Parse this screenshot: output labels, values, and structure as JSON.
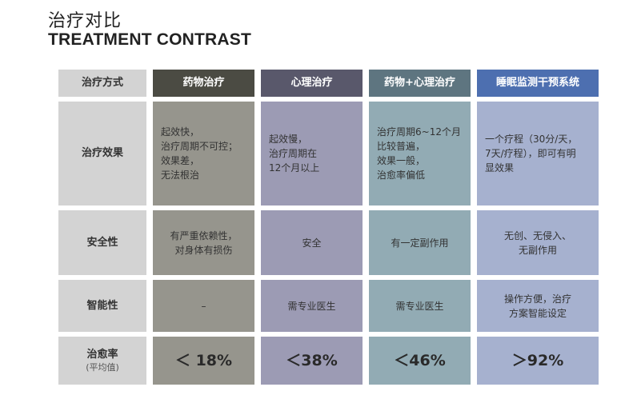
{
  "header": {
    "title_cn": "治疗对比",
    "title_en": "TREATMENT CONTRAST"
  },
  "table": {
    "corner_label": "治疗方式",
    "columns": [
      "药物治疗",
      "心理治疗",
      "药物+心理治疗",
      "睡眠监测干预系统"
    ],
    "rows": [
      {
        "label": "治疗效果",
        "cells": [
          "起效快，\n治疗周期不可控；\n效果差，\n无法根治",
          "起效慢，\n治疗周期在\n12个月以上",
          "治疗周期6~12个月\n比较普遍，\n效果一般，\n治愈率偏低",
          "一个疗程（30分/天，\n7天/疗程），即可有明\n显效果"
        ]
      },
      {
        "label": "安全性",
        "cells": [
          "有严重依赖性，\n对身体有损伤",
          "安全",
          "有一定副作用",
          "无创、无侵入、\n无副作用"
        ]
      },
      {
        "label": "智能性",
        "cells": [
          "–",
          "需专业医生",
          "需专业医生",
          "操作方便，治疗\n方案智能设定"
        ]
      },
      {
        "label": "治愈率",
        "sublabel": "(平均值)",
        "cells": [
          "＜ 18%",
          "＜38%",
          "＜46%",
          "＞92%"
        ]
      }
    ]
  },
  "colors": {
    "col1_header": "#4b4b43",
    "col2_header": "#59586b",
    "col3_header": "#5e7580",
    "col4_header": "#4d6fb0",
    "col1_body": "#96958d",
    "col2_body": "#9c9bb4",
    "col3_body": "#92abb4",
    "col4_body": "#a6b1cf",
    "label_bg": "#d3d3d3"
  }
}
